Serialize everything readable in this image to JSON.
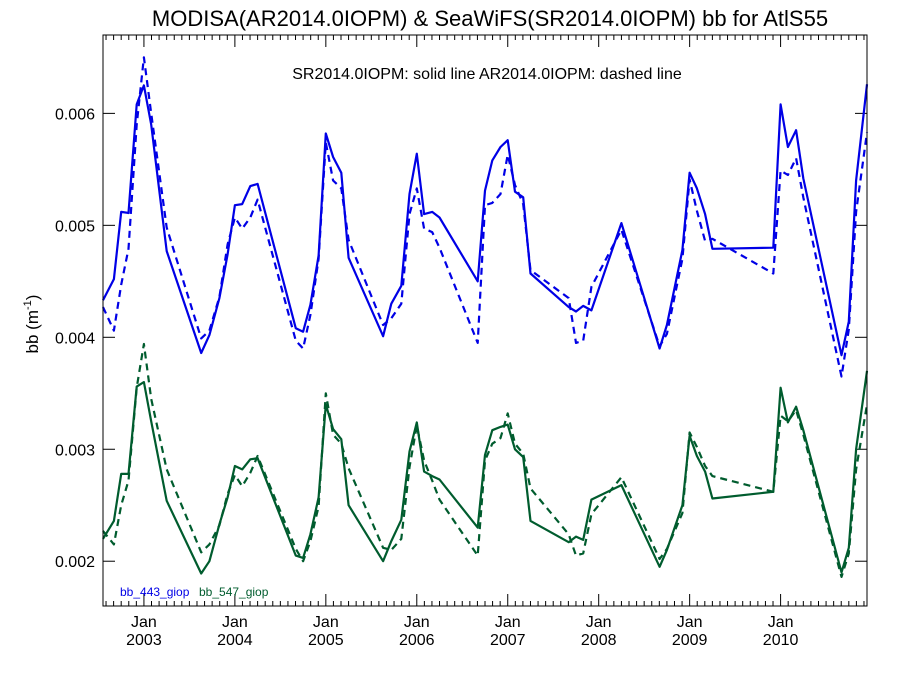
{
  "chart_data": {
    "type": "line",
    "title": "MODISA(AR2014.0IOPM) & SeaWiFS(SR2014.0IOPM)  bb for AtlS55",
    "annotation": "SR2014.0IOPM: solid line   AR2014.0IOPM: dashed line",
    "ylabel": "bb (m",
    "ylabel_sup": "-1",
    "ylabel_close": ")",
    "xlim": [
      2002.55,
      2010.95
    ],
    "ylim": [
      0.0016,
      0.0067
    ],
    "yticks": [
      0.002,
      0.003,
      0.004,
      0.005,
      0.006
    ],
    "ytick_labels": [
      "0.002",
      "0.003",
      "0.004",
      "0.005",
      "0.006"
    ],
    "xticks": [
      {
        "x": 2003.0,
        "month": "Jan",
        "year": "2003"
      },
      {
        "x": 2004.0,
        "month": "Jan",
        "year": "2004"
      },
      {
        "x": 2005.0,
        "month": "Jan",
        "year": "2005"
      },
      {
        "x": 2006.0,
        "month": "Jan",
        "year": "2006"
      },
      {
        "x": 2007.0,
        "month": "Jan",
        "year": "2007"
      },
      {
        "x": 2008.0,
        "month": "Jan",
        "year": "2008"
      },
      {
        "x": 2009.0,
        "month": "Jan",
        "year": "2009"
      },
      {
        "x": 2010.0,
        "month": "Jan",
        "year": "2010"
      }
    ],
    "series": [
      {
        "name": "bb_443_giop",
        "product": "SR2014.0IOPM",
        "style": "solid",
        "color": "#0000e6",
        "x": [
          2002.55,
          2002.67,
          2002.75,
          2002.83,
          2002.92,
          2003.0,
          2003.08,
          2003.25,
          2003.63,
          2003.72,
          2003.83,
          2003.92,
          2004.0,
          2004.08,
          2004.17,
          2004.25,
          2004.67,
          2004.75,
          2004.83,
          2004.92,
          2005.0,
          2005.08,
          2005.17,
          2005.25,
          2005.63,
          2005.72,
          2005.83,
          2005.92,
          2006.0,
          2006.08,
          2006.17,
          2006.25,
          2006.67,
          2006.75,
          2006.83,
          2006.92,
          2007.0,
          2007.08,
          2007.17,
          2007.25,
          2007.67,
          2007.75,
          2007.83,
          2007.92,
          2008.25,
          2008.67,
          2008.75,
          2008.92,
          2009.0,
          2009.08,
          2009.17,
          2009.25,
          2009.92,
          2010.0,
          2010.08,
          2010.17,
          2010.25,
          2010.67,
          2010.75,
          2010.83,
          2010.95
        ],
        "values": [
          0.00433,
          0.00452,
          0.00512,
          0.00511,
          0.00608,
          0.00625,
          0.0059,
          0.00477,
          0.00386,
          0.00402,
          0.00435,
          0.00474,
          0.00518,
          0.00519,
          0.00535,
          0.00537,
          0.00408,
          0.00405,
          0.00429,
          0.00473,
          0.00582,
          0.00561,
          0.00547,
          0.00471,
          0.00401,
          0.0043,
          0.00446,
          0.00528,
          0.00564,
          0.0051,
          0.00512,
          0.00507,
          0.0045,
          0.00531,
          0.00558,
          0.0057,
          0.00576,
          0.0053,
          0.00525,
          0.00457,
          0.00427,
          0.00423,
          0.00428,
          0.00424,
          0.00502,
          0.0039,
          0.00411,
          0.00478,
          0.00547,
          0.00533,
          0.0051,
          0.00479,
          0.0048,
          0.00608,
          0.0057,
          0.00585,
          0.00542,
          0.00384,
          0.00414,
          0.0054,
          0.00626
        ]
      },
      {
        "name": "bb_443_giop",
        "product": "AR2014.0IOPM",
        "style": "dashed",
        "color": "#0000e6",
        "x": [
          2002.55,
          2002.67,
          2002.75,
          2002.83,
          2002.92,
          2003.0,
          2003.08,
          2003.25,
          2003.63,
          2003.72,
          2003.83,
          2003.92,
          2004.0,
          2004.08,
          2004.17,
          2004.25,
          2004.67,
          2004.75,
          2004.83,
          2004.92,
          2005.0,
          2005.08,
          2005.17,
          2005.25,
          2005.63,
          2005.72,
          2005.83,
          2005.92,
          2006.0,
          2006.08,
          2006.17,
          2006.25,
          2006.67,
          2006.75,
          2006.83,
          2006.92,
          2007.0,
          2007.08,
          2007.17,
          2007.25,
          2007.67,
          2007.75,
          2007.83,
          2007.92,
          2008.25,
          2008.67,
          2008.75,
          2008.92,
          2009.0,
          2009.08,
          2009.17,
          2009.25,
          2009.92,
          2010.0,
          2010.08,
          2010.17,
          2010.25,
          2010.67,
          2010.75,
          2010.83,
          2010.95
        ],
        "values": [
          0.00427,
          0.00406,
          0.00447,
          0.00479,
          0.0059,
          0.0065,
          0.006,
          0.00498,
          0.00399,
          0.00406,
          0.00436,
          0.00483,
          0.00507,
          0.00497,
          0.00507,
          0.00523,
          0.00397,
          0.0039,
          0.0042,
          0.0047,
          0.00574,
          0.0054,
          0.00533,
          0.00487,
          0.00411,
          0.00417,
          0.0043,
          0.0051,
          0.00533,
          0.00497,
          0.00494,
          0.0048,
          0.00395,
          0.00518,
          0.0052,
          0.00528,
          0.00563,
          0.00536,
          0.00519,
          0.0046,
          0.00435,
          0.00395,
          0.00397,
          0.00445,
          0.00496,
          0.00392,
          0.00403,
          0.0047,
          0.00541,
          0.00513,
          0.00486,
          0.00488,
          0.00457,
          0.00549,
          0.00545,
          0.0056,
          0.00525,
          0.00365,
          0.00407,
          0.00512,
          0.00583
        ]
      },
      {
        "name": "bb_547_giop",
        "product": "SR2014.0IOPM",
        "style": "solid",
        "color": "#005c2e",
        "x": [
          2002.55,
          2002.67,
          2002.75,
          2002.83,
          2002.92,
          2003.0,
          2003.08,
          2003.25,
          2003.63,
          2003.72,
          2003.83,
          2003.92,
          2004.0,
          2004.08,
          2004.17,
          2004.25,
          2004.67,
          2004.75,
          2004.83,
          2004.92,
          2005.0,
          2005.08,
          2005.17,
          2005.25,
          2005.63,
          2005.72,
          2005.83,
          2005.92,
          2006.0,
          2006.08,
          2006.17,
          2006.25,
          2006.67,
          2006.75,
          2006.83,
          2006.92,
          2007.0,
          2007.08,
          2007.17,
          2007.25,
          2007.67,
          2007.75,
          2007.83,
          2007.92,
          2008.25,
          2008.67,
          2008.75,
          2008.92,
          2009.0,
          2009.08,
          2009.17,
          2009.25,
          2009.92,
          2010.0,
          2010.08,
          2010.17,
          2010.25,
          2010.67,
          2010.75,
          2010.83,
          2010.95
        ],
        "values": [
          0.0022,
          0.00236,
          0.00278,
          0.00278,
          0.00356,
          0.0036,
          0.00325,
          0.00254,
          0.00189,
          0.002,
          0.00233,
          0.00257,
          0.00285,
          0.00282,
          0.00291,
          0.00292,
          0.00205,
          0.00203,
          0.00224,
          0.00257,
          0.0034,
          0.00318,
          0.00309,
          0.0025,
          0.002,
          0.00218,
          0.00237,
          0.00298,
          0.00324,
          0.0028,
          0.00276,
          0.00273,
          0.0023,
          0.00295,
          0.00317,
          0.0032,
          0.00322,
          0.003,
          0.00293,
          0.00236,
          0.00217,
          0.00222,
          0.00219,
          0.00255,
          0.00268,
          0.00195,
          0.0021,
          0.0025,
          0.00312,
          0.00294,
          0.0028,
          0.00256,
          0.00262,
          0.00355,
          0.00324,
          0.00338,
          0.00317,
          0.0019,
          0.00212,
          0.003,
          0.0037
        ]
      },
      {
        "name": "bb_547_giop",
        "product": "AR2014.0IOPM",
        "style": "dashed",
        "color": "#005c2e",
        "x": [
          2002.55,
          2002.67,
          2002.75,
          2002.83,
          2002.92,
          2003.0,
          2003.08,
          2003.25,
          2003.63,
          2003.72,
          2003.83,
          2003.92,
          2004.0,
          2004.08,
          2004.17,
          2004.25,
          2004.67,
          2004.75,
          2004.83,
          2004.92,
          2005.0,
          2005.08,
          2005.17,
          2005.25,
          2005.63,
          2005.72,
          2005.83,
          2005.92,
          2006.0,
          2006.08,
          2006.17,
          2006.25,
          2006.67,
          2006.75,
          2006.83,
          2006.92,
          2007.0,
          2007.08,
          2007.17,
          2007.25,
          2007.67,
          2007.75,
          2007.83,
          2007.92,
          2008.25,
          2008.67,
          2008.75,
          2008.92,
          2009.0,
          2009.08,
          2009.17,
          2009.25,
          2009.92,
          2010.0,
          2010.08,
          2010.17,
          2010.25,
          2010.67,
          2010.75,
          2010.83,
          2010.95
        ],
        "values": [
          0.00227,
          0.00215,
          0.0025,
          0.00272,
          0.00355,
          0.00394,
          0.00345,
          0.00282,
          0.00208,
          0.00215,
          0.00232,
          0.0026,
          0.00277,
          0.00267,
          0.00279,
          0.00294,
          0.00211,
          0.002,
          0.00218,
          0.00249,
          0.0035,
          0.00313,
          0.00305,
          0.00283,
          0.00212,
          0.0021,
          0.0022,
          0.00284,
          0.00321,
          0.0029,
          0.00272,
          0.00255,
          0.00205,
          0.0029,
          0.00305,
          0.0031,
          0.00332,
          0.00305,
          0.00296,
          0.00265,
          0.00224,
          0.00205,
          0.00207,
          0.00242,
          0.00275,
          0.00202,
          0.00211,
          0.00243,
          0.00315,
          0.00302,
          0.00285,
          0.00276,
          0.00262,
          0.0033,
          0.00325,
          0.00335,
          0.00313,
          0.00186,
          0.00207,
          0.00282,
          0.0034
        ]
      }
    ],
    "legend": [
      {
        "label": "bb_443_giop",
        "color": "#0000e6"
      },
      {
        "label": "bb_547_giop",
        "color": "#005c2e"
      }
    ],
    "legend_position": "bottom-left",
    "grid": false
  }
}
